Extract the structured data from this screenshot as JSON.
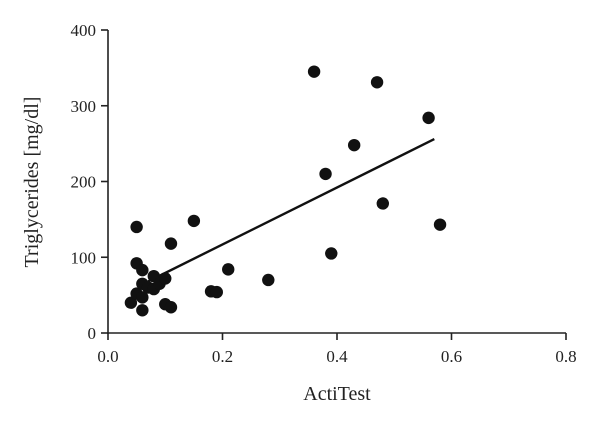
{
  "chart_data": {
    "type": "scatter",
    "title": "",
    "xlabel": "ActiTest",
    "ylabel": "Triglycerides [mg/dl]",
    "xlim": [
      0,
      0.8
    ],
    "ylim": [
      0,
      400
    ],
    "xticks": [
      0.0,
      0.2,
      0.4,
      0.6,
      0.8
    ],
    "xtick_labels": [
      "0.0",
      "0.2",
      "0.4",
      "0.6",
      "0.8"
    ],
    "yticks": [
      0,
      100,
      200,
      300,
      400
    ],
    "ytick_labels": [
      "0",
      "100",
      "200",
      "300",
      "400"
    ],
    "grid": false,
    "marker_color": "#111111",
    "series": [
      {
        "points": [
          [
            0.04,
            40
          ],
          [
            0.05,
            140
          ],
          [
            0.05,
            92
          ],
          [
            0.05,
            52
          ],
          [
            0.06,
            83
          ],
          [
            0.06,
            65
          ],
          [
            0.06,
            47
          ],
          [
            0.06,
            30
          ],
          [
            0.07,
            60
          ],
          [
            0.08,
            75
          ],
          [
            0.08,
            58
          ],
          [
            0.09,
            65
          ],
          [
            0.1,
            72
          ],
          [
            0.1,
            38
          ],
          [
            0.11,
            118
          ],
          [
            0.11,
            34
          ],
          [
            0.15,
            148
          ],
          [
            0.18,
            55
          ],
          [
            0.19,
            54
          ],
          [
            0.21,
            84
          ],
          [
            0.28,
            70
          ],
          [
            0.36,
            345
          ],
          [
            0.38,
            210
          ],
          [
            0.39,
            105
          ],
          [
            0.43,
            248
          ],
          [
            0.47,
            331
          ],
          [
            0.48,
            171
          ],
          [
            0.56,
            284
          ],
          [
            0.58,
            143
          ]
        ]
      }
    ],
    "trendline": {
      "x": [
        0.07,
        0.57
      ],
      "y": [
        68,
        256
      ]
    }
  }
}
